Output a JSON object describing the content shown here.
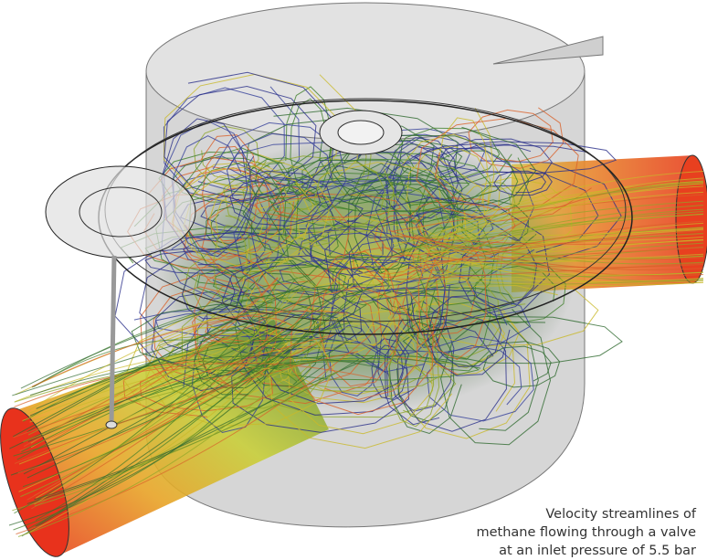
{
  "caption": {
    "lines": [
      "Velocity streamlines of",
      "methane flowing through a valve",
      "at an inlet pressure of 5.5 bar"
    ]
  }
}
